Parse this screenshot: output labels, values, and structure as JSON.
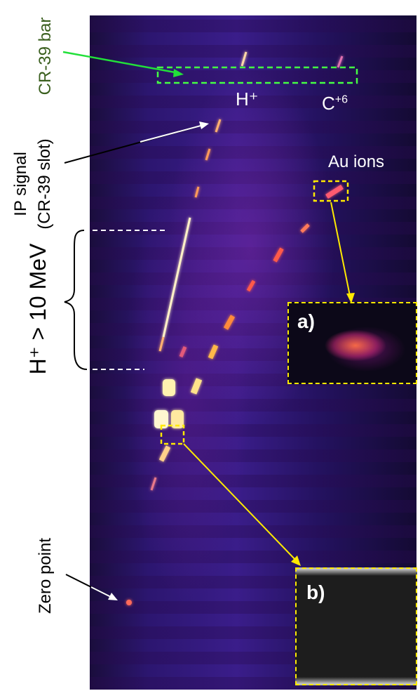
{
  "labels": {
    "cr39_bar": "CR-39 bar",
    "ip_signal_line1": "IP signal",
    "ip_signal_line2": "(CR-39 slot)",
    "proton_energy": "H⁺ > 10 MeV",
    "zero_point": "Zero point",
    "proton": "H⁺",
    "carbon_prefix": "C",
    "carbon_charge": "+6",
    "au_ions": "Au ions",
    "inset_a": "a)",
    "inset_b": "b)"
  },
  "colors": {
    "cr39_arrow": "#22e03a",
    "cr39_box": "#44ff44",
    "au_box": "#ffea00",
    "white_arrow": "#ffffff",
    "black_arrow": "#000000",
    "cr39_label": "#3a5f1e"
  }
}
